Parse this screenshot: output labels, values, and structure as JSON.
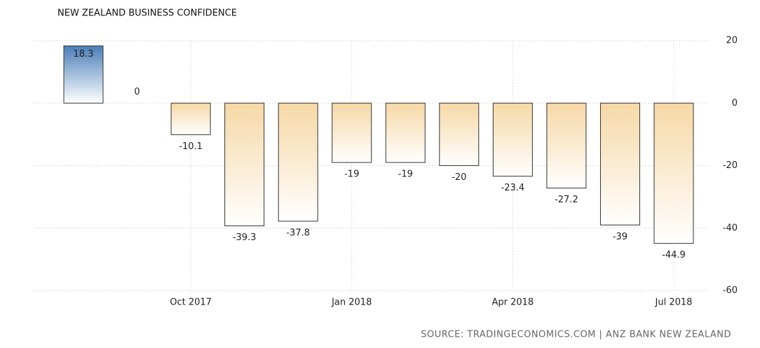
{
  "chart_data": {
    "type": "bar",
    "title": "NEW ZEALAND BUSINESS CONFIDENCE",
    "source": "SOURCE: TRADINGECONOMICS.COM | ANZ BANK NEW ZEALAND",
    "categories": [
      null,
      null,
      "Oct 2017",
      null,
      null,
      "Jan 2018",
      null,
      null,
      "Apr 2018",
      null,
      null,
      "Jul 2018"
    ],
    "values": [
      18.3,
      0,
      -10.1,
      -39.3,
      -37.8,
      -19,
      -19,
      -20,
      -23.4,
      -27.2,
      -39,
      -44.9
    ],
    "positive_color": "#4a7fb8",
    "negative_color": "#f6d8a6",
    "ylim": [
      -60,
      20
    ],
    "yticks": [
      20,
      0,
      -20,
      -40,
      -60
    ],
    "grid": true
  }
}
